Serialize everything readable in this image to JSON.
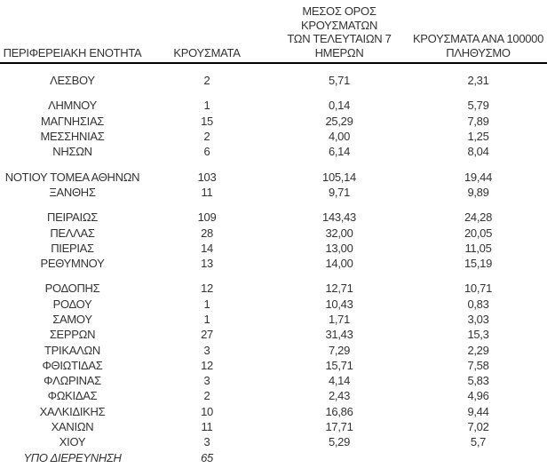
{
  "colors": {
    "background": "#ffffff",
    "text": "#333333",
    "header_rule": "#000000"
  },
  "table": {
    "header": {
      "region": "ΠΕΡΙΦΕΡΕΙΑΚΗ ΕΝΟΤΗΤΑ",
      "cases": "ΚΡΟΥΣΜΑΤΑ",
      "avg7_line1": "ΜΕΣΟΣ ΟΡΟΣ ΚΡΟΥΣΜΑΤΩΝ",
      "avg7_line2": "ΤΩΝ ΤΕΛΕΥΤΑΙΩΝ 7",
      "avg7_line3": "ΗΜΕΡΩΝ",
      "per100k_line1": "ΚΡΟΥΣΜΑΤΑ ΑΝΑ 100000",
      "per100k_line2": "ΠΛΗΘΥΣΜΟ"
    },
    "columns": [
      "ΠΕΡΙΦΕΡΕΙΑΚΗ ΕΝΟΤΗΤΑ",
      "ΚΡΟΥΣΜΑΤΑ",
      "ΜΕΣΟΣ ΟΡΟΣ ΚΡΟΥΣΜΑΤΩΝ ΤΩΝ ΤΕΛΕΥΤΑΙΩΝ 7 ΗΜΕΡΩΝ",
      "ΚΡΟΥΣΜΑΤΑ ΑΝΑ 100000 ΠΛΗΘΥΣΜΟ"
    ],
    "groups": [
      [
        {
          "region": "ΛΕΣΒΟΥ",
          "cases": "2",
          "avg7": "5,71",
          "per100k": "2,31"
        }
      ],
      [
        {
          "region": "ΛΗΜΝΟΥ",
          "cases": "1",
          "avg7": "0,14",
          "per100k": "5,79"
        },
        {
          "region": "ΜΑΓΝΗΣΙΑΣ",
          "cases": "15",
          "avg7": "25,29",
          "per100k": "7,89"
        },
        {
          "region": "ΜΕΣΣΗΝΙΑΣ",
          "cases": "2",
          "avg7": "4,00",
          "per100k": "1,25"
        },
        {
          "region": "ΝΗΣΩΝ",
          "cases": "6",
          "avg7": "6,14",
          "per100k": "8,04"
        }
      ],
      [
        {
          "region": "ΝΟΤΙΟΥ ΤΟΜΕΑ ΑΘΗΝΩΝ",
          "cases": "103",
          "avg7": "105,14",
          "per100k": "19,44"
        },
        {
          "region": "ΞΑΝΘΗΣ",
          "cases": "11",
          "avg7": "9,71",
          "per100k": "9,89"
        }
      ],
      [
        {
          "region": "ΠΕΙΡΑΙΩΣ",
          "cases": "109",
          "avg7": "143,43",
          "per100k": "24,28"
        },
        {
          "region": "ΠΕΛΛΑΣ",
          "cases": "28",
          "avg7": "32,00",
          "per100k": "20,05"
        },
        {
          "region": "ΠΙΕΡΙΑΣ",
          "cases": "14",
          "avg7": "13,00",
          "per100k": "11,05"
        },
        {
          "region": "ΡΕΘΥΜΝΟΥ",
          "cases": "13",
          "avg7": "14,00",
          "per100k": "15,19"
        }
      ],
      [
        {
          "region": "ΡΟΔΟΠΗΣ",
          "cases": "12",
          "avg7": "12,71",
          "per100k": "10,71"
        },
        {
          "region": "ΡΟΔΟΥ",
          "cases": "1",
          "avg7": "10,43",
          "per100k": "0,83"
        },
        {
          "region": "ΣΑΜΟΥ",
          "cases": "1",
          "avg7": "1,71",
          "per100k": "3,03"
        },
        {
          "region": "ΣΕΡΡΩΝ",
          "cases": "27",
          "avg7": "31,43",
          "per100k": "15,3"
        },
        {
          "region": "ΤΡΙΚΑΛΩΝ",
          "cases": "3",
          "avg7": "7,29",
          "per100k": "2,29"
        },
        {
          "region": "ΦΘΙΩΤΙΔΑΣ",
          "cases": "12",
          "avg7": "15,71",
          "per100k": "7,58"
        },
        {
          "region": "ΦΛΩΡΙΝΑΣ",
          "cases": "3",
          "avg7": "4,14",
          "per100k": "5,83"
        },
        {
          "region": "ΦΩΚΙΔΑΣ",
          "cases": "2",
          "avg7": "2,43",
          "per100k": "4,96"
        },
        {
          "region": "ΧΑΛΚΙΔΙΚΗΣ",
          "cases": "10",
          "avg7": "16,86",
          "per100k": "9,44"
        },
        {
          "region": "ΧΑΝΙΩΝ",
          "cases": "11",
          "avg7": "17,71",
          "per100k": "7,02"
        },
        {
          "region": "ΧΙΟΥ",
          "cases": "3",
          "avg7": "5,29",
          "per100k": "5,7"
        },
        {
          "region": "ΥΠΟ ΔΙΕΡΕΥΝΗΣΗ",
          "cases": "65",
          "avg7": "",
          "per100k": "",
          "italic": true
        }
      ]
    ]
  }
}
